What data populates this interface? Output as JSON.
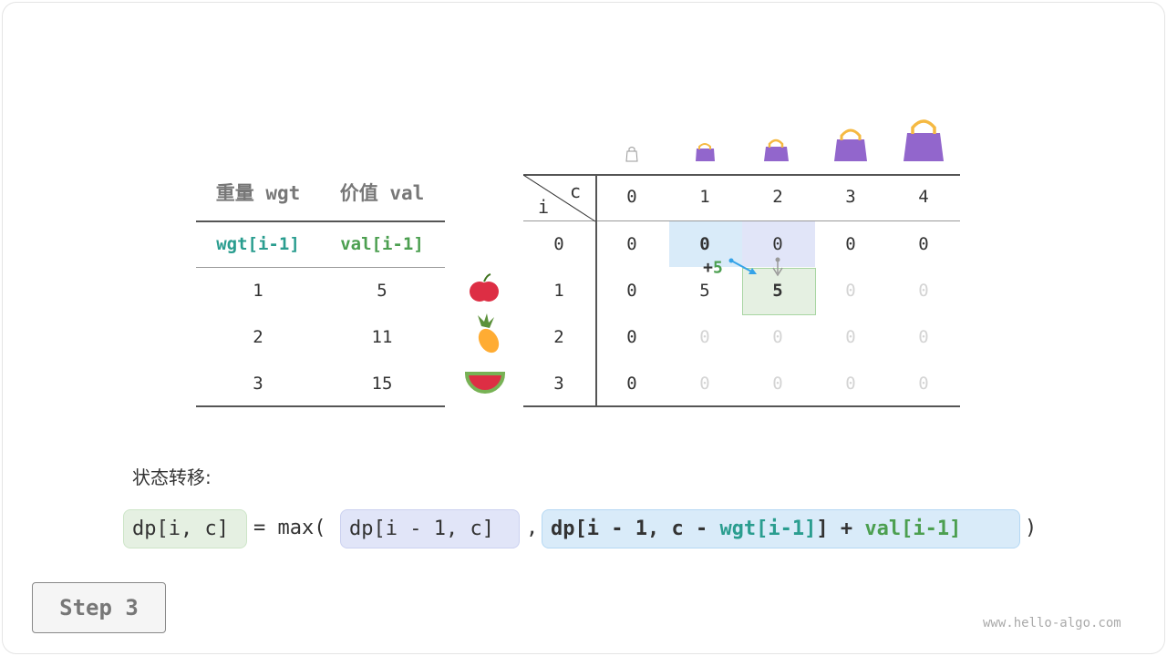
{
  "items_table": {
    "headers": [
      "重量 wgt",
      "价值 val"
    ],
    "subheaders": [
      "wgt[i-1]",
      "val[i-1]"
    ],
    "rows": [
      [
        "1",
        "5"
      ],
      [
        "2",
        "11"
      ],
      [
        "3",
        "15"
      ]
    ],
    "item_icons": [
      "apple-icon",
      "pineapple-icon",
      "watermelon-icon"
    ]
  },
  "dp_table": {
    "corner_c": "c",
    "corner_i": "i",
    "cols": [
      "0",
      "1",
      "2",
      "3",
      "4"
    ],
    "row_labels": [
      "0",
      "1",
      "2",
      "3"
    ],
    "cells": [
      [
        "0",
        "0",
        "0",
        "0",
        "0"
      ],
      [
        "0",
        "5",
        "5",
        "0",
        "0"
      ],
      [
        "0",
        "0",
        "0",
        "0",
        "0"
      ],
      [
        "0",
        "0",
        "0",
        "0",
        "0"
      ]
    ],
    "delta_label": "+",
    "delta_value": "5"
  },
  "transition_label": "状态转移:",
  "formula": {
    "lhs": "dp[i, c]",
    "eq": "= max(",
    "opt1": "dp[i - 1, c]",
    "comma": ",",
    "opt2_a": "dp[i - 1, c - ",
    "opt2_wgt": "wgt[i-1]",
    "opt2_b": "] + ",
    "opt2_val": "val[i-1]",
    "close": ")"
  },
  "step_button": "Step 3",
  "watermark": "www.hello-algo.com",
  "colors": {
    "teal": "#2a9d8f",
    "green": "#4c9f50",
    "current": "#e5f0e2",
    "top": "#e1e5f8",
    "diag": "#d9ebf9",
    "bag": "#9266cc"
  }
}
